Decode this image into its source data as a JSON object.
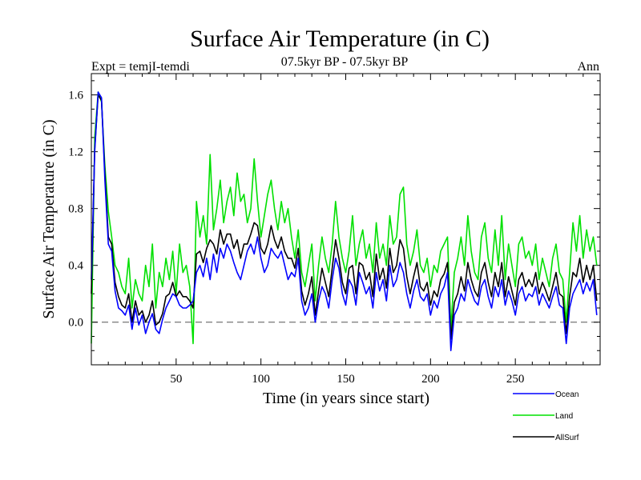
{
  "chart_data": {
    "type": "line",
    "title": "Surface Air Temperature (in C)",
    "subtitle": "07.5kyr BP - 07.5kyr BP",
    "expt_label": "Expt = temjI-temdi",
    "period_label": "Ann",
    "xlabel": "Time (in years since start)",
    "ylabel": "Surface Air Temperature (in C)",
    "xlim": [
      0,
      300
    ],
    "ylim": [
      -0.3,
      1.75
    ],
    "xticks": [
      50,
      100,
      150,
      200,
      250
    ],
    "xtick_labels": [
      "50",
      "100",
      "150",
      "200",
      "250"
    ],
    "yticks": [
      0.0,
      0.4,
      0.8,
      1.2,
      1.6
    ],
    "ytick_labels": [
      "0.0",
      "0.4",
      "0.8",
      "1.2",
      "1.6"
    ],
    "reference_line": 0.0,
    "legend_position": "bottom-right",
    "series": [
      {
        "name": "Ocean",
        "color": "#0000ff",
        "x_start": 0,
        "x_step": 2,
        "values": [
          0.3,
          1.2,
          1.62,
          1.58,
          1.0,
          0.55,
          0.5,
          0.22,
          0.1,
          0.08,
          0.05,
          0.12,
          -0.05,
          0.1,
          -0.02,
          0.05,
          -0.08,
          0.0,
          0.06,
          -0.05,
          -0.08,
          0.02,
          0.1,
          0.15,
          0.2,
          0.18,
          0.12,
          0.1,
          0.1,
          0.12,
          0.15,
          0.35,
          0.4,
          0.32,
          0.45,
          0.3,
          0.48,
          0.35,
          0.52,
          0.45,
          0.55,
          0.5,
          0.42,
          0.35,
          0.3,
          0.4,
          0.5,
          0.55,
          0.48,
          0.6,
          0.45,
          0.35,
          0.4,
          0.52,
          0.48,
          0.45,
          0.5,
          0.4,
          0.3,
          0.35,
          0.32,
          0.45,
          0.15,
          0.05,
          0.1,
          0.2,
          0.0,
          0.15,
          0.25,
          0.2,
          0.1,
          0.3,
          0.45,
          0.38,
          0.2,
          0.12,
          0.3,
          0.25,
          0.12,
          0.35,
          0.28,
          0.2,
          0.25,
          0.1,
          0.35,
          0.22,
          0.3,
          0.15,
          0.4,
          0.25,
          0.3,
          0.42,
          0.35,
          0.2,
          0.1,
          0.22,
          0.3,
          0.18,
          0.15,
          0.2,
          0.05,
          0.15,
          0.1,
          0.2,
          0.25,
          0.35,
          -0.2,
          0.05,
          0.1,
          0.2,
          0.15,
          0.3,
          0.22,
          0.15,
          0.12,
          0.25,
          0.3,
          0.18,
          0.1,
          0.25,
          0.18,
          0.3,
          0.12,
          0.22,
          0.15,
          0.05,
          0.2,
          0.25,
          0.15,
          0.2,
          0.18,
          0.25,
          0.12,
          0.2,
          0.15,
          0.1,
          0.18,
          0.25,
          0.12,
          0.1,
          -0.15,
          0.1,
          0.2,
          0.25,
          0.3,
          0.2,
          0.28,
          0.22,
          0.3,
          0.05
        ]
      },
      {
        "name": "Land",
        "color": "#00e000",
        "x_start": 0,
        "x_step": 2,
        "values": [
          -0.15,
          1.3,
          1.62,
          1.55,
          1.1,
          0.78,
          0.6,
          0.4,
          0.35,
          0.25,
          0.2,
          0.45,
          0.1,
          0.3,
          0.2,
          0.15,
          0.4,
          0.25,
          0.55,
          0.1,
          0.35,
          0.25,
          0.45,
          0.3,
          0.5,
          0.2,
          0.55,
          0.35,
          0.4,
          0.25,
          -0.15,
          0.85,
          0.6,
          0.75,
          0.55,
          1.18,
          0.65,
          0.8,
          1.0,
          0.7,
          0.85,
          0.95,
          0.75,
          1.05,
          0.85,
          0.9,
          0.7,
          0.8,
          1.15,
          0.85,
          0.6,
          0.75,
          0.9,
          1.0,
          0.8,
          0.65,
          0.85,
          0.7,
          0.8,
          0.6,
          0.45,
          0.65,
          0.35,
          0.25,
          0.4,
          0.55,
          0.15,
          0.4,
          0.6,
          0.45,
          0.35,
          0.55,
          0.85,
          0.6,
          0.45,
          0.35,
          0.5,
          0.75,
          0.4,
          0.55,
          0.65,
          0.45,
          0.55,
          0.35,
          0.7,
          0.45,
          0.55,
          0.4,
          0.75,
          0.55,
          0.6,
          0.9,
          0.95,
          0.55,
          0.4,
          0.5,
          0.65,
          0.4,
          0.35,
          0.45,
          0.25,
          0.4,
          0.35,
          0.5,
          0.55,
          0.6,
          -0.05,
          0.35,
          0.45,
          0.6,
          0.4,
          0.75,
          0.5,
          0.35,
          0.3,
          0.6,
          0.7,
          0.45,
          0.35,
          0.65,
          0.4,
          0.75,
          0.3,
          0.55,
          0.4,
          0.25,
          0.55,
          0.6,
          0.45,
          0.5,
          0.4,
          0.55,
          0.3,
          0.45,
          0.35,
          0.25,
          0.45,
          0.55,
          0.35,
          0.3,
          0.0,
          0.35,
          0.7,
          0.5,
          0.75,
          0.45,
          0.65,
          0.5,
          0.6,
          0.4
        ]
      },
      {
        "name": "AllSurf",
        "color": "#000000",
        "x_start": 0,
        "x_step": 2,
        "values": [
          0.2,
          1.22,
          1.6,
          1.56,
          1.05,
          0.6,
          0.55,
          0.28,
          0.18,
          0.12,
          0.1,
          0.2,
          0.0,
          0.15,
          0.05,
          0.08,
          0.0,
          0.05,
          0.15,
          -0.02,
          0.0,
          0.06,
          0.18,
          0.2,
          0.28,
          0.18,
          0.22,
          0.18,
          0.18,
          0.15,
          0.1,
          0.48,
          0.5,
          0.42,
          0.52,
          0.58,
          0.55,
          0.48,
          0.65,
          0.55,
          0.62,
          0.62,
          0.52,
          0.58,
          0.45,
          0.55,
          0.55,
          0.62,
          0.7,
          0.68,
          0.52,
          0.48,
          0.55,
          0.68,
          0.58,
          0.52,
          0.6,
          0.5,
          0.45,
          0.45,
          0.38,
          0.52,
          0.22,
          0.12,
          0.2,
          0.32,
          0.05,
          0.22,
          0.38,
          0.28,
          0.18,
          0.38,
          0.58,
          0.45,
          0.28,
          0.2,
          0.38,
          0.4,
          0.2,
          0.42,
          0.4,
          0.3,
          0.35,
          0.18,
          0.48,
          0.3,
          0.38,
          0.24,
          0.52,
          0.35,
          0.4,
          0.58,
          0.52,
          0.32,
          0.2,
          0.32,
          0.42,
          0.25,
          0.22,
          0.28,
          0.12,
          0.22,
          0.18,
          0.3,
          0.34,
          0.42,
          -0.12,
          0.14,
          0.2,
          0.32,
          0.22,
          0.42,
          0.3,
          0.22,
          0.18,
          0.35,
          0.42,
          0.28,
          0.18,
          0.35,
          0.25,
          0.42,
          0.18,
          0.32,
          0.22,
          0.12,
          0.3,
          0.35,
          0.25,
          0.3,
          0.25,
          0.35,
          0.2,
          0.28,
          0.22,
          0.15,
          0.25,
          0.35,
          0.2,
          0.18,
          -0.08,
          0.18,
          0.35,
          0.32,
          0.45,
          0.28,
          0.4,
          0.3,
          0.4,
          0.15
        ]
      }
    ]
  }
}
